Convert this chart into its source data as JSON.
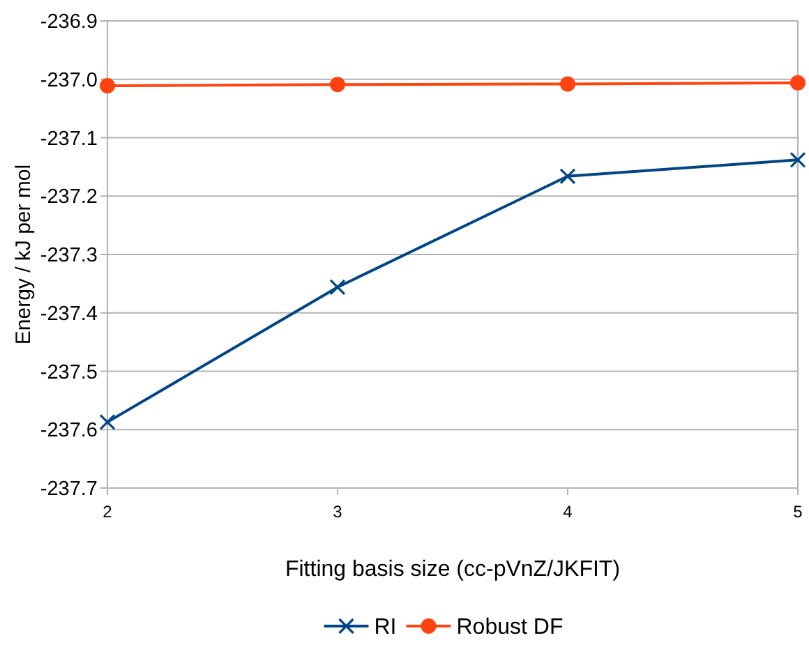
{
  "chart_data": {
    "type": "line",
    "xlabel": "Fitting basis size (cc-pVnZ/JKFIT)",
    "ylabel": "Energy / kJ per mol",
    "x": [
      2,
      3,
      4,
      5
    ],
    "xlim": [
      2,
      5
    ],
    "xticks": [
      2,
      3,
      4,
      5
    ],
    "ylim": [
      -237.7,
      -236.9
    ],
    "yticks": [
      {
        "value": -237.7,
        "label": "-237.7"
      },
      {
        "value": -237.6,
        "label": "-237.6"
      },
      {
        "value": -237.5,
        "label": "-237.5"
      },
      {
        "value": -237.4,
        "label": "-237.4"
      },
      {
        "value": -237.3,
        "label": "-237.3"
      },
      {
        "value": -237.2,
        "label": "-237.2"
      },
      {
        "value": -237.1,
        "label": "-237.1"
      },
      {
        "value": -237.0,
        "label": "-237.0"
      },
      {
        "value": -236.9,
        "label": "-236.9"
      }
    ],
    "grid": "y",
    "legend": "bottom",
    "series": [
      {
        "name": "RI",
        "color": "#004586",
        "marker": "cross",
        "values": [
          -237.587,
          -237.356,
          -237.166,
          -237.138
        ]
      },
      {
        "name": "Robust DF",
        "color": "#ff420e",
        "marker": "circle",
        "values": [
          -237.011,
          -237.009,
          -237.008,
          -237.006
        ]
      }
    ]
  }
}
